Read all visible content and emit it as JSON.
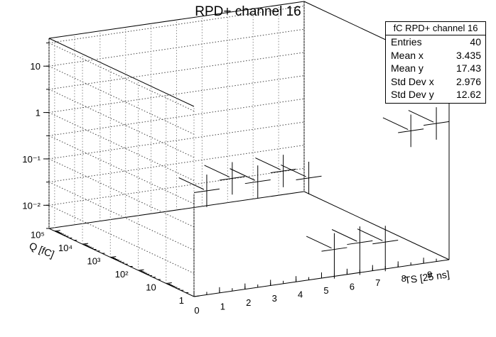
{
  "chart_data": {
    "type": "lego3d_errorbars",
    "title": "RPD+ channel 16",
    "xlabel": "TS [25 ns]",
    "ylabel": "Q [fC]",
    "x_ticks": [
      "0",
      "1",
      "2",
      "3",
      "4",
      "5",
      "6",
      "7",
      "8",
      "9"
    ],
    "xlim": [
      0,
      10
    ],
    "y_ticks": [
      "1",
      "10",
      "10²",
      "10³",
      "10⁴",
      "10⁵"
    ],
    "ylim_log10": [
      0,
      5.2
    ],
    "z_ticks": [
      "10⁻²",
      "10⁻¹",
      "1",
      "10"
    ],
    "zlim_log10": [
      -2.5,
      1.6
    ],
    "z_scale": "log",
    "y_scale": "log",
    "grid": true,
    "points": [
      {
        "x": 0.5,
        "y": 1.0,
        "z": 0.55
      },
      {
        "x": 1.5,
        "y": 1.0,
        "z": 0.85
      },
      {
        "x": 2.5,
        "y": 1.0,
        "z": 0.6
      },
      {
        "x": 3.5,
        "y": 1.0,
        "z": 0.85
      },
      {
        "x": 4.5,
        "y": 1.0,
        "z": 0.5
      },
      {
        "x": 5.5,
        "y": 1.0,
        "z": 0.012
      },
      {
        "x": 6.5,
        "y": 1.0,
        "z": 0.014
      },
      {
        "x": 7.5,
        "y": 1.0,
        "z": 0.012
      },
      {
        "x": 8.5,
        "y": 1.0,
        "z": 2.5
      },
      {
        "x": 9.5,
        "y": 1.0,
        "z": 3.0
      }
    ]
  },
  "stats": {
    "title": "fC RPD+ channel 16",
    "rows": [
      {
        "label": "Entries",
        "value": "40"
      },
      {
        "label": "Mean x",
        "value": "3.435"
      },
      {
        "label": "Mean y",
        "value": "17.43"
      },
      {
        "label": "Std Dev x",
        "value": "2.976"
      },
      {
        "label": "Std Dev y",
        "value": "12.62"
      }
    ]
  }
}
